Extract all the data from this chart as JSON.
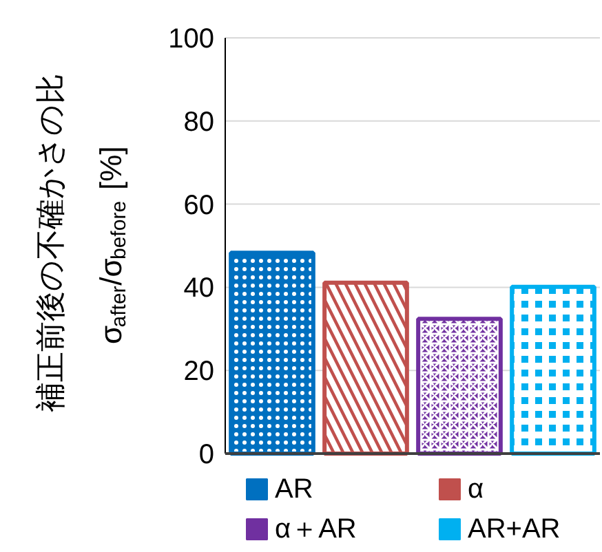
{
  "chart_data": {
    "type": "bar",
    "ylabel": "補正前後の不確かさの比\nσ$_{after}$/σ$_{before}$ [%]",
    "categories": [
      null,
      null,
      null,
      null
    ],
    "series": [
      {
        "name": "AR",
        "color": "#0070c0",
        "values": [
          48.3,
          null,
          null,
          null
        ]
      },
      {
        "name": "α",
        "color": "#c0504d",
        "values": [
          null,
          41.1,
          null,
          null
        ]
      },
      {
        "name": "α＋AR",
        "color": "#7030a0",
        "values": [
          null,
          null,
          32.4,
          null
        ]
      },
      {
        "name": "AR+AR",
        "color": "#00b0f0",
        "values": [
          null,
          null,
          null,
          40.1
        ]
      }
    ],
    "ylim": [
      0,
      100
    ],
    "yticks": [
      0,
      20,
      40,
      60,
      80,
      100
    ],
    "grid": "y",
    "legend": "bottom"
  }
}
